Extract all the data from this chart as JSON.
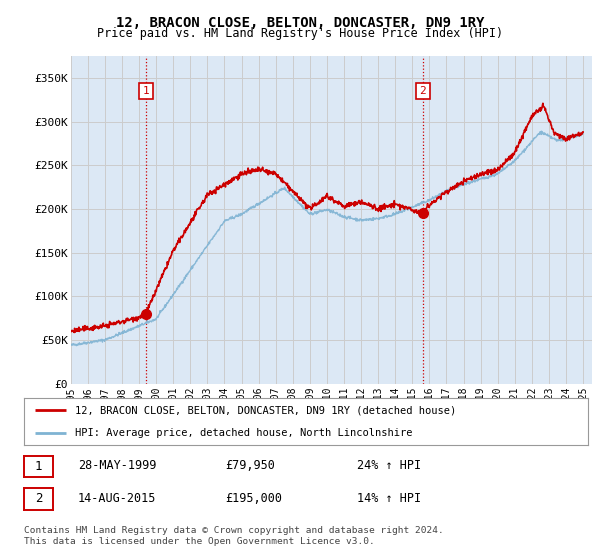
{
  "title": "12, BRACON CLOSE, BELTON, DONCASTER, DN9 1RY",
  "subtitle": "Price paid vs. HM Land Registry's House Price Index (HPI)",
  "ylabel_ticks": [
    "£0",
    "£50K",
    "£100K",
    "£150K",
    "£200K",
    "£250K",
    "£300K",
    "£350K"
  ],
  "ytick_values": [
    0,
    50000,
    100000,
    150000,
    200000,
    250000,
    300000,
    350000
  ],
  "ylim": [
    0,
    375000
  ],
  "xlim_start": 1995.0,
  "xlim_end": 2025.5,
  "sale1_year": 1999.4,
  "sale1_price": 79950,
  "sale1_label": "1",
  "sale2_year": 2015.62,
  "sale2_price": 195000,
  "sale2_label": "2",
  "legend_line1": "12, BRACON CLOSE, BELTON, DONCASTER, DN9 1RY (detached house)",
  "legend_line2": "HPI: Average price, detached house, North Lincolnshire",
  "table_row1_num": "1",
  "table_row1_date": "28-MAY-1999",
  "table_row1_price": "£79,950",
  "table_row1_hpi": "24% ↑ HPI",
  "table_row2_num": "2",
  "table_row2_date": "14-AUG-2015",
  "table_row2_price": "£195,000",
  "table_row2_hpi": "14% ↑ HPI",
  "footnote": "Contains HM Land Registry data © Crown copyright and database right 2024.\nThis data is licensed under the Open Government Licence v3.0.",
  "red_color": "#cc0000",
  "blue_color": "#7fb3d3",
  "grid_color": "#cccccc",
  "bg_color": "#ffffff",
  "plot_bg": "#dce8f5",
  "vline_color": "#cc0000",
  "xtick_years": [
    1995,
    1996,
    1997,
    1998,
    1999,
    2000,
    2001,
    2002,
    2003,
    2004,
    2005,
    2006,
    2007,
    2008,
    2009,
    2010,
    2011,
    2012,
    2013,
    2014,
    2015,
    2016,
    2017,
    2018,
    2019,
    2020,
    2021,
    2022,
    2023,
    2024,
    2025
  ]
}
